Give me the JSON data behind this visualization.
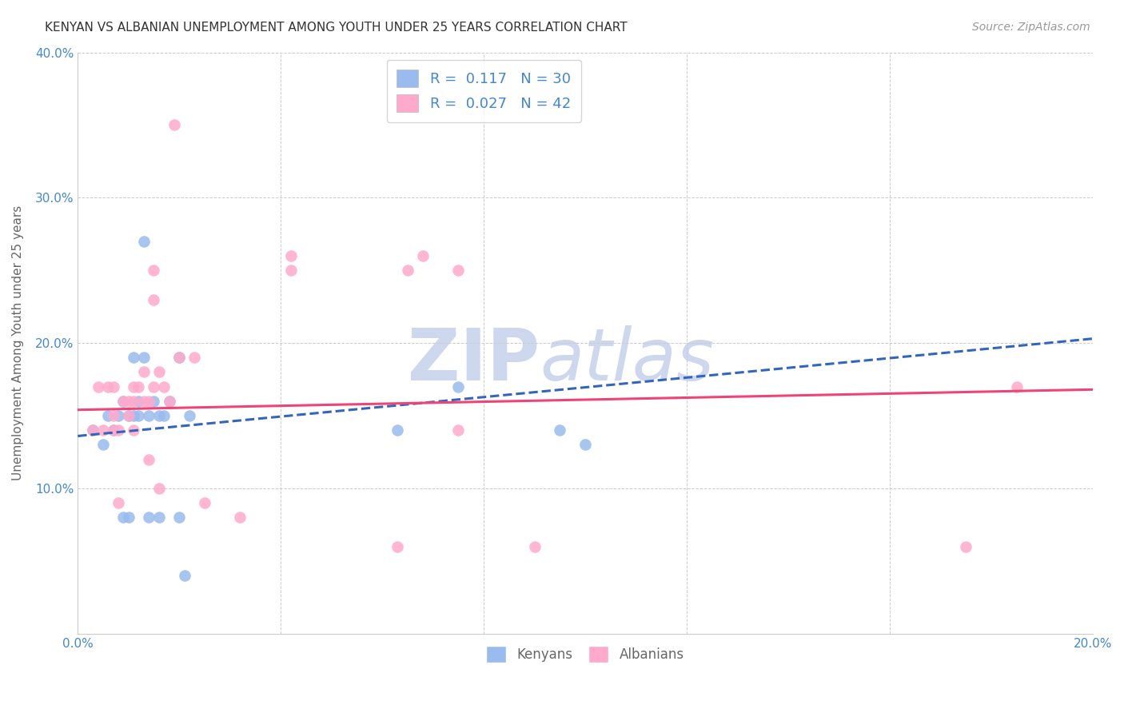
{
  "title": "KENYAN VS ALBANIAN UNEMPLOYMENT AMONG YOUTH UNDER 25 YEARS CORRELATION CHART",
  "source": "Source: ZipAtlas.com",
  "ylabel": "Unemployment Among Youth under 25 years",
  "xlim": [
    0.0,
    0.2
  ],
  "ylim": [
    0.0,
    0.4
  ],
  "xticks": [
    0.0,
    0.04,
    0.08,
    0.12,
    0.16,
    0.2
  ],
  "yticks": [
    0.0,
    0.1,
    0.2,
    0.3,
    0.4
  ],
  "background_color": "#ffffff",
  "grid_color": "#cccccc",
  "kenyan_color": "#99bbee",
  "albanian_color": "#ffaacc",
  "kenyan_line_color": "#3366bb",
  "albanian_line_color": "#ee4477",
  "legend_R_kenyan": "0.117",
  "legend_N_kenyan": "30",
  "legend_R_albanian": "0.027",
  "legend_N_albanian": "42",
  "kenyan_x": [
    0.003,
    0.005,
    0.006,
    0.007,
    0.008,
    0.009,
    0.009,
    0.01,
    0.01,
    0.011,
    0.011,
    0.012,
    0.012,
    0.013,
    0.013,
    0.014,
    0.014,
    0.015,
    0.016,
    0.016,
    0.017,
    0.018,
    0.02,
    0.02,
    0.021,
    0.022,
    0.063,
    0.075,
    0.095,
    0.1
  ],
  "kenyan_y": [
    0.14,
    0.13,
    0.15,
    0.14,
    0.15,
    0.16,
    0.08,
    0.15,
    0.08,
    0.15,
    0.19,
    0.16,
    0.15,
    0.27,
    0.19,
    0.15,
    0.08,
    0.16,
    0.15,
    0.08,
    0.15,
    0.16,
    0.08,
    0.19,
    0.04,
    0.15,
    0.14,
    0.17,
    0.14,
    0.13
  ],
  "albanian_x": [
    0.003,
    0.004,
    0.005,
    0.006,
    0.007,
    0.007,
    0.007,
    0.008,
    0.008,
    0.009,
    0.01,
    0.01,
    0.011,
    0.011,
    0.011,
    0.012,
    0.013,
    0.013,
    0.014,
    0.014,
    0.015,
    0.015,
    0.015,
    0.016,
    0.016,
    0.017,
    0.018,
    0.019,
    0.02,
    0.023,
    0.025,
    0.032,
    0.042,
    0.042,
    0.063,
    0.065,
    0.068,
    0.075,
    0.075,
    0.09,
    0.175,
    0.185
  ],
  "albanian_y": [
    0.14,
    0.17,
    0.14,
    0.17,
    0.14,
    0.15,
    0.17,
    0.14,
    0.09,
    0.16,
    0.15,
    0.16,
    0.16,
    0.17,
    0.14,
    0.17,
    0.16,
    0.18,
    0.16,
    0.12,
    0.17,
    0.23,
    0.25,
    0.18,
    0.1,
    0.17,
    0.16,
    0.35,
    0.19,
    0.19,
    0.09,
    0.08,
    0.25,
    0.26,
    0.06,
    0.25,
    0.26,
    0.25,
    0.14,
    0.06,
    0.06,
    0.17
  ],
  "title_fontsize": 11,
  "axis_fontsize": 11,
  "tick_fontsize": 11,
  "source_fontsize": 10,
  "marker_size": 110,
  "watermark_color": "#cdd8ef",
  "watermark_fontsize": 65,
  "kenyan_trend_x": [
    0.0,
    0.2
  ],
  "kenyan_trend_y": [
    0.136,
    0.203
  ],
  "albanian_trend_x": [
    0.0,
    0.2
  ],
  "albanian_trend_y": [
    0.154,
    0.168
  ]
}
